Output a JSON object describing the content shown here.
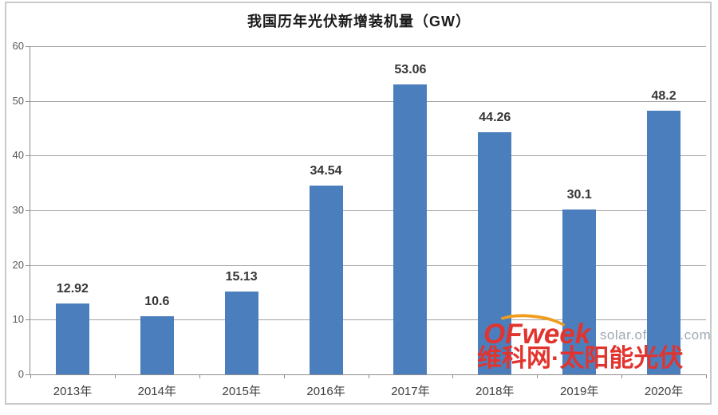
{
  "chart_data": {
    "type": "bar",
    "title": "我国历年光伏新增装机量（GW）",
    "categories": [
      "2013年",
      "2014年",
      "2015年",
      "2016年",
      "2017年",
      "2018年",
      "2019年",
      "2020年"
    ],
    "values": [
      12.92,
      10.6,
      15.13,
      34.54,
      53.06,
      44.26,
      30.1,
      48.2
    ],
    "value_labels": [
      "12.92",
      "10.6",
      "15.13",
      "34.54",
      "53.06",
      "44.26",
      "30.1",
      "48.2"
    ],
    "xlabel": "",
    "ylabel": "",
    "ylim": [
      0,
      60
    ],
    "y_ticks": [
      0,
      10,
      20,
      30,
      40,
      50,
      60
    ],
    "grid": true,
    "legend": "none",
    "bar_color": "#4b7ebc"
  },
  "watermark": {
    "brand": "OFweek",
    "separator": "|",
    "domain": "solar.ofweek.com",
    "tagline": "维科网·太阳能光伏",
    "brand_color": "#e2342e",
    "swoosh_color": "#f09d1e",
    "domain_color": "#9fa9b3"
  }
}
